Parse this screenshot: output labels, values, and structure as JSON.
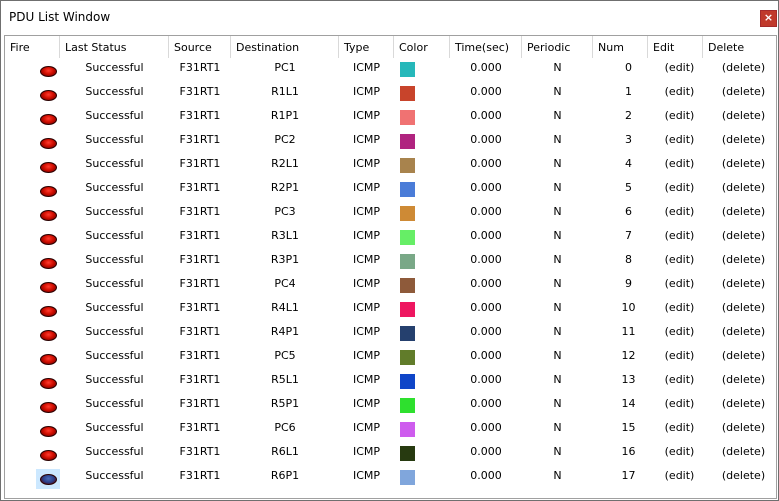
{
  "window": {
    "title": "PDU List Window",
    "close_label": "×"
  },
  "columns": [
    "Fire",
    "Last Status",
    "Source",
    "Destination",
    "Type",
    "Color",
    "Time(sec)",
    "Periodic",
    "Num",
    "Edit",
    "Delete"
  ],
  "rows": [
    {
      "status": "Successful",
      "source": "F31RT1",
      "destination": "PC1",
      "type": "ICMP",
      "color": "#26B8BA",
      "time": "0.000",
      "periodic": "N",
      "num": "0",
      "edit": "(edit)",
      "delete": "(delete)",
      "selected": false
    },
    {
      "status": "Successful",
      "source": "F31RT1",
      "destination": "R1L1",
      "type": "ICMP",
      "color": "#C8442B",
      "time": "0.000",
      "periodic": "N",
      "num": "1",
      "edit": "(edit)",
      "delete": "(delete)",
      "selected": false
    },
    {
      "status": "Successful",
      "source": "F31RT1",
      "destination": "R1P1",
      "type": "ICMP",
      "color": "#F07272",
      "time": "0.000",
      "periodic": "N",
      "num": "2",
      "edit": "(edit)",
      "delete": "(delete)",
      "selected": false
    },
    {
      "status": "Successful",
      "source": "F31RT1",
      "destination": "PC2",
      "type": "ICMP",
      "color": "#B0237F",
      "time": "0.000",
      "periodic": "N",
      "num": "3",
      "edit": "(edit)",
      "delete": "(delete)",
      "selected": false
    },
    {
      "status": "Successful",
      "source": "F31RT1",
      "destination": "R2L1",
      "type": "ICMP",
      "color": "#A8834D",
      "time": "0.000",
      "periodic": "N",
      "num": "4",
      "edit": "(edit)",
      "delete": "(delete)",
      "selected": false
    },
    {
      "status": "Successful",
      "source": "F31RT1",
      "destination": "R2P1",
      "type": "ICMP",
      "color": "#4A7CD8",
      "time": "0.000",
      "periodic": "N",
      "num": "5",
      "edit": "(edit)",
      "delete": "(delete)",
      "selected": false
    },
    {
      "status": "Successful",
      "source": "F31RT1",
      "destination": "PC3",
      "type": "ICMP",
      "color": "#CE8A35",
      "time": "0.000",
      "periodic": "N",
      "num": "6",
      "edit": "(edit)",
      "delete": "(delete)",
      "selected": false
    },
    {
      "status": "Successful",
      "source": "F31RT1",
      "destination": "R3L1",
      "type": "ICMP",
      "color": "#66EE66",
      "time": "0.000",
      "periodic": "N",
      "num": "7",
      "edit": "(edit)",
      "delete": "(delete)",
      "selected": false
    },
    {
      "status": "Successful",
      "source": "F31RT1",
      "destination": "R3P1",
      "type": "ICMP",
      "color": "#79A887",
      "time": "0.000",
      "periodic": "N",
      "num": "8",
      "edit": "(edit)",
      "delete": "(delete)",
      "selected": false
    },
    {
      "status": "Successful",
      "source": "F31RT1",
      "destination": "PC4",
      "type": "ICMP",
      "color": "#8E5A3A",
      "time": "0.000",
      "periodic": "N",
      "num": "9",
      "edit": "(edit)",
      "delete": "(delete)",
      "selected": false
    },
    {
      "status": "Successful",
      "source": "F31RT1",
      "destination": "R4L1",
      "type": "ICMP",
      "color": "#EE1660",
      "time": "0.000",
      "periodic": "N",
      "num": "10",
      "edit": "(edit)",
      "delete": "(delete)",
      "selected": false
    },
    {
      "status": "Successful",
      "source": "F31RT1",
      "destination": "R4P1",
      "type": "ICMP",
      "color": "#25406E",
      "time": "0.000",
      "periodic": "N",
      "num": "11",
      "edit": "(edit)",
      "delete": "(delete)",
      "selected": false
    },
    {
      "status": "Successful",
      "source": "F31RT1",
      "destination": "PC5",
      "type": "ICMP",
      "color": "#617C2A",
      "time": "0.000",
      "periodic": "N",
      "num": "12",
      "edit": "(edit)",
      "delete": "(delete)",
      "selected": false
    },
    {
      "status": "Successful",
      "source": "F31RT1",
      "destination": "R5L1",
      "type": "ICMP",
      "color": "#0F45C8",
      "time": "0.000",
      "periodic": "N",
      "num": "13",
      "edit": "(edit)",
      "delete": "(delete)",
      "selected": false
    },
    {
      "status": "Successful",
      "source": "F31RT1",
      "destination": "R5P1",
      "type": "ICMP",
      "color": "#2EE02E",
      "time": "0.000",
      "periodic": "N",
      "num": "14",
      "edit": "(edit)",
      "delete": "(delete)",
      "selected": false
    },
    {
      "status": "Successful",
      "source": "F31RT1",
      "destination": "PC6",
      "type": "ICMP",
      "color": "#CE5CEE",
      "time": "0.000",
      "periodic": "N",
      "num": "15",
      "edit": "(edit)",
      "delete": "(delete)",
      "selected": false
    },
    {
      "status": "Successful",
      "source": "F31RT1",
      "destination": "R6L1",
      "type": "ICMP",
      "color": "#273A10",
      "time": "0.000",
      "periodic": "N",
      "num": "16",
      "edit": "(edit)",
      "delete": "(delete)",
      "selected": false
    },
    {
      "status": "Successful",
      "source": "F31RT1",
      "destination": "R6P1",
      "type": "ICMP",
      "color": "#80A6DC",
      "time": "0.000",
      "periodic": "N",
      "num": "17",
      "edit": "(edit)",
      "delete": "(delete)",
      "selected": true
    }
  ]
}
